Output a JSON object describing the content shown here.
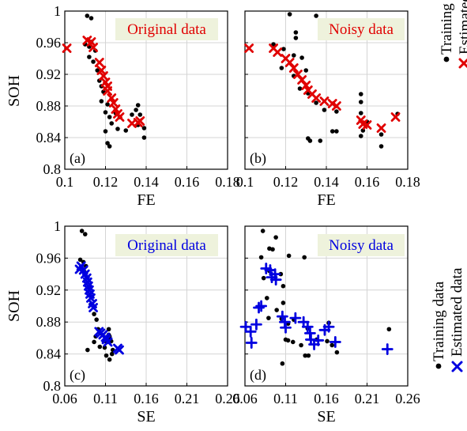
{
  "figure": {
    "ylabel": "SOH",
    "legends": [
      {
        "entries": [
          {
            "label": "Training data",
            "marker": "dot",
            "color": "#000000"
          },
          {
            "label": "Estimated data",
            "marker": "x",
            "color": "#e00000"
          }
        ]
      },
      {
        "entries": [
          {
            "label": "Training data",
            "marker": "dot",
            "color": "#000000"
          },
          {
            "label": "Estimated data",
            "marker": "x",
            "color": "#0000e0"
          }
        ]
      }
    ]
  },
  "chart_data": [
    {
      "type": "scatter",
      "panel": "(a)",
      "title": "Original data",
      "xlabel": "FE",
      "ylabel": "SOH",
      "xlim": [
        0.1,
        0.18
      ],
      "ylim": [
        0.8,
        1.0
      ],
      "xticks": [
        "0.1",
        "0.12",
        "0.14",
        "0.16",
        "0.18"
      ],
      "yticks": [
        "0.8",
        "0.84",
        "0.88",
        "0.92",
        "0.96",
        "1"
      ],
      "grid": true,
      "est_marker": "x",
      "est_color": "#e00000",
      "title_color": "#e00000",
      "title_bg": "#eef2dc",
      "series": [
        {
          "name": "Training data",
          "points": [
            [
              0.111,
              0.994
            ],
            [
              0.113,
              0.991
            ],
            [
              0.11,
              0.958
            ],
            [
              0.112,
              0.955
            ],
            [
              0.113,
              0.961
            ],
            [
              0.115,
              0.95
            ],
            [
              0.112,
              0.942
            ],
            [
              0.114,
              0.936
            ],
            [
              0.116,
              0.925
            ],
            [
              0.117,
              0.912
            ],
            [
              0.118,
              0.905
            ],
            [
              0.119,
              0.898
            ],
            [
              0.118,
              0.886
            ],
            [
              0.121,
              0.882
            ],
            [
              0.12,
              0.872
            ],
            [
              0.122,
              0.866
            ],
            [
              0.123,
              0.858
            ],
            [
              0.12,
              0.848
            ],
            [
              0.121,
              0.833
            ],
            [
              0.122,
              0.829
            ],
            [
              0.125,
              0.871
            ],
            [
              0.127,
              0.866
            ],
            [
              0.126,
              0.851
            ],
            [
              0.13,
              0.849
            ],
            [
              0.133,
              0.869
            ],
            [
              0.135,
              0.875
            ],
            [
              0.136,
              0.881
            ],
            [
              0.137,
              0.869
            ],
            [
              0.136,
              0.856
            ],
            [
              0.139,
              0.852
            ],
            [
              0.139,
              0.84
            ]
          ]
        },
        {
          "name": "Estimated data",
          "points": [
            [
              0.101,
              0.953
            ],
            [
              0.111,
              0.963
            ],
            [
              0.113,
              0.961
            ],
            [
              0.114,
              0.954
            ],
            [
              0.117,
              0.935
            ],
            [
              0.118,
              0.925
            ],
            [
              0.119,
              0.918
            ],
            [
              0.12,
              0.91
            ],
            [
              0.121,
              0.905
            ],
            [
              0.121,
              0.899
            ],
            [
              0.123,
              0.89
            ],
            [
              0.124,
              0.884
            ],
            [
              0.125,
              0.876
            ],
            [
              0.126,
              0.87
            ],
            [
              0.127,
              0.866
            ],
            [
              0.133,
              0.858
            ],
            [
              0.136,
              0.859
            ],
            [
              0.137,
              0.861
            ]
          ]
        }
      ]
    },
    {
      "type": "scatter",
      "panel": "(b)",
      "title": "Noisy data",
      "xlabel": "FE",
      "xlim": [
        0.1,
        0.18
      ],
      "ylim": [
        0.8,
        1.0
      ],
      "xticks": [
        "0.1",
        "0.12",
        "0.14",
        "0.16",
        "0.18"
      ],
      "yticks": [],
      "grid": true,
      "est_marker": "x",
      "est_color": "#e00000",
      "title_color": "#e00000",
      "title_bg": "#eef2dc",
      "series": [
        {
          "name": "Training data",
          "points": [
            [
              0.122,
              0.996
            ],
            [
              0.135,
              0.994
            ],
            [
              0.125,
              0.973
            ],
            [
              0.125,
              0.966
            ],
            [
              0.114,
              0.958
            ],
            [
              0.119,
              0.952
            ],
            [
              0.124,
              0.944
            ],
            [
              0.128,
              0.941
            ],
            [
              0.118,
              0.928
            ],
            [
              0.124,
              0.918
            ],
            [
              0.13,
              0.925
            ],
            [
              0.127,
              0.902
            ],
            [
              0.131,
              0.896
            ],
            [
              0.135,
              0.884
            ],
            [
              0.139,
              0.875
            ],
            [
              0.131,
              0.839
            ],
            [
              0.132,
              0.836
            ],
            [
              0.137,
              0.836
            ],
            [
              0.143,
              0.848
            ],
            [
              0.145,
              0.848
            ],
            [
              0.145,
              0.873
            ],
            [
              0.157,
              0.895
            ],
            [
              0.157,
              0.885
            ],
            [
              0.157,
              0.871
            ],
            [
              0.158,
              0.849
            ],
            [
              0.157,
              0.842
            ],
            [
              0.16,
              0.86
            ],
            [
              0.167,
              0.844
            ],
            [
              0.167,
              0.829
            ],
            [
              0.175,
              0.87
            ]
          ]
        },
        {
          "name": "Estimated data",
          "points": [
            [
              0.102,
              0.953
            ],
            [
              0.114,
              0.953
            ],
            [
              0.116,
              0.948
            ],
            [
              0.12,
              0.94
            ],
            [
              0.122,
              0.935
            ],
            [
              0.124,
              0.928
            ],
            [
              0.126,
              0.92
            ],
            [
              0.128,
              0.913
            ],
            [
              0.13,
              0.906
            ],
            [
              0.131,
              0.9
            ],
            [
              0.133,
              0.895
            ],
            [
              0.135,
              0.89
            ],
            [
              0.139,
              0.886
            ],
            [
              0.143,
              0.883
            ],
            [
              0.145,
              0.88
            ],
            [
              0.157,
              0.862
            ],
            [
              0.158,
              0.857
            ],
            [
              0.16,
              0.856
            ],
            [
              0.167,
              0.852
            ],
            [
              0.174,
              0.866
            ]
          ]
        }
      ]
    },
    {
      "type": "scatter",
      "panel": "(c)",
      "title": "Original data",
      "xlabel": "SE",
      "ylabel": "SOH",
      "xlim": [
        0.06,
        0.26
      ],
      "ylim": [
        0.8,
        1.0
      ],
      "xticks": [
        "0.06",
        "0.11",
        "0.16",
        "0.21",
        "0.26"
      ],
      "yticks": [
        "0.8",
        "0.84",
        "0.88",
        "0.92",
        "0.96",
        "1"
      ],
      "grid": true,
      "est_marker": "x",
      "est_color": "#0000e0",
      "title_color": "#0000e0",
      "title_bg": "#eef2dc",
      "series": [
        {
          "name": "Training data",
          "points": [
            [
              0.081,
              0.994
            ],
            [
              0.085,
              0.99
            ],
            [
              0.079,
              0.958
            ],
            [
              0.083,
              0.955
            ],
            [
              0.086,
              0.95
            ],
            [
              0.084,
              0.943
            ],
            [
              0.088,
              0.936
            ],
            [
              0.09,
              0.924
            ],
            [
              0.091,
              0.913
            ],
            [
              0.092,
              0.902
            ],
            [
              0.096,
              0.89
            ],
            [
              0.099,
              0.883
            ],
            [
              0.101,
              0.871
            ],
            [
              0.104,
              0.866
            ],
            [
              0.098,
              0.862
            ],
            [
              0.108,
              0.856
            ],
            [
              0.103,
              0.849
            ],
            [
              0.109,
              0.848
            ],
            [
              0.112,
              0.855
            ],
            [
              0.113,
              0.86
            ],
            [
              0.114,
              0.871
            ],
            [
              0.114,
              0.864
            ],
            [
              0.115,
              0.862
            ],
            [
              0.117,
              0.856
            ],
            [
              0.119,
              0.845
            ],
            [
              0.111,
              0.838
            ],
            [
              0.115,
              0.833
            ],
            [
              0.118,
              0.84
            ],
            [
              0.088,
              0.845
            ],
            [
              0.096,
              0.855
            ]
          ]
        },
        {
          "name": "Estimated data",
          "points": [
            [
              0.078,
              0.946
            ],
            [
              0.08,
              0.95
            ],
            [
              0.083,
              0.945
            ],
            [
              0.085,
              0.94
            ],
            [
              0.087,
              0.935
            ],
            [
              0.088,
              0.93
            ],
            [
              0.089,
              0.925
            ],
            [
              0.09,
              0.92
            ],
            [
              0.091,
              0.915
            ],
            [
              0.092,
              0.91
            ],
            [
              0.094,
              0.903
            ],
            [
              0.095,
              0.898
            ],
            [
              0.102,
              0.868
            ],
            [
              0.104,
              0.866
            ],
            [
              0.107,
              0.864
            ],
            [
              0.11,
              0.861
            ],
            [
              0.111,
              0.858
            ],
            [
              0.113,
              0.855
            ],
            [
              0.125,
              0.847
            ],
            [
              0.127,
              0.845
            ]
          ]
        }
      ]
    },
    {
      "type": "scatter",
      "panel": "(d)",
      "title": "Noisy data",
      "xlabel": "SE",
      "xlim": [
        0.06,
        0.26
      ],
      "ylim": [
        0.8,
        1.0
      ],
      "xticks": [
        "0.06",
        "0.11",
        "0.16",
        "0.21",
        "0.26"
      ],
      "yticks": [],
      "grid": true,
      "est_marker": "plus",
      "est_color": "#0000e0",
      "title_color": "#0000e0",
      "title_bg": "#eef2dc",
      "series": [
        {
          "name": "Training data",
          "points": [
            [
              0.082,
              0.994
            ],
            [
              0.098,
              0.986
            ],
            [
              0.09,
              0.972
            ],
            [
              0.094,
              0.971
            ],
            [
              0.08,
              0.961
            ],
            [
              0.114,
              0.963
            ],
            [
              0.133,
              0.961
            ],
            [
              0.09,
              0.944
            ],
            [
              0.104,
              0.94
            ],
            [
              0.083,
              0.935
            ],
            [
              0.107,
              0.925
            ],
            [
              0.087,
              0.91
            ],
            [
              0.107,
              0.904
            ],
            [
              0.099,
              0.895
            ],
            [
              0.089,
              0.885
            ],
            [
              0.105,
              0.884
            ],
            [
              0.113,
              0.878
            ],
            [
              0.12,
              0.883
            ],
            [
              0.137,
              0.872
            ],
            [
              0.11,
              0.858
            ],
            [
              0.113,
              0.857
            ],
            [
              0.119,
              0.855
            ],
            [
              0.129,
              0.851
            ],
            [
              0.134,
              0.838
            ],
            [
              0.138,
              0.838
            ],
            [
              0.148,
              0.858
            ],
            [
              0.161,
              0.856
            ],
            [
              0.163,
              0.879
            ],
            [
              0.167,
              0.851
            ],
            [
              0.173,
              0.842
            ],
            [
              0.106,
              0.828
            ],
            [
              0.237,
              0.871
            ]
          ]
        },
        {
          "name": "Estimated data",
          "points": [
            [
              0.061,
              0.874
            ],
            [
              0.067,
              0.868
            ],
            [
              0.068,
              0.854
            ],
            [
              0.074,
              0.877
            ],
            [
              0.077,
              0.898
            ],
            [
              0.08,
              0.9
            ],
            [
              0.086,
              0.947
            ],
            [
              0.091,
              0.945
            ],
            [
              0.093,
              0.936
            ],
            [
              0.097,
              0.94
            ],
            [
              0.098,
              0.933
            ],
            [
              0.106,
              0.887
            ],
            [
              0.109,
              0.88
            ],
            [
              0.11,
              0.873
            ],
            [
              0.122,
              0.885
            ],
            [
              0.132,
              0.88
            ],
            [
              0.137,
              0.874
            ],
            [
              0.14,
              0.866
            ],
            [
              0.141,
              0.858
            ],
            [
              0.145,
              0.852
            ],
            [
              0.15,
              0.857
            ],
            [
              0.158,
              0.87
            ],
            [
              0.163,
              0.874
            ],
            [
              0.171,
              0.855
            ],
            [
              0.235,
              0.846
            ]
          ]
        }
      ]
    }
  ]
}
